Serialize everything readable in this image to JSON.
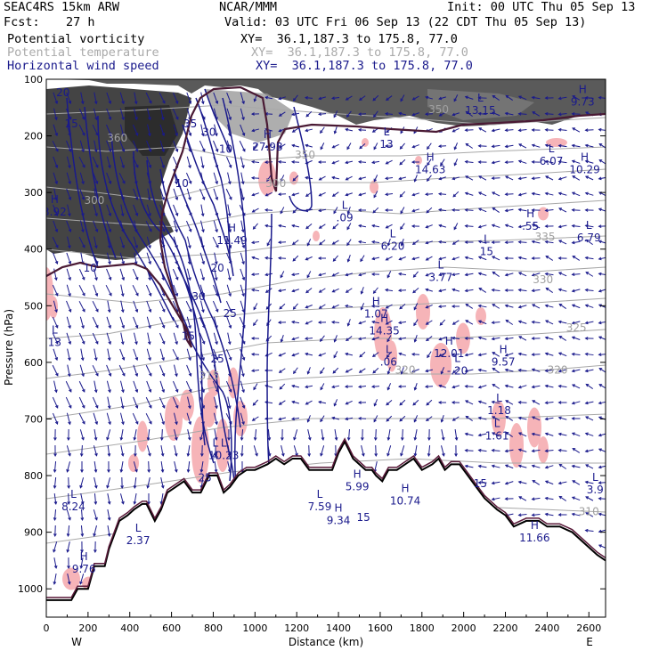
{
  "header": {
    "model": "SEAC4RS 15km ARW",
    "org": "NCAR/MMM",
    "init": "Init: 00 UTC Thu 05 Sep 13",
    "fcst_label": "Fcst:",
    "fcst_value": "27 h",
    "valid": "Valid: 03 UTC Fri 06 Sep 13 (22 CDT Thu 05 Sep 13)"
  },
  "fields": [
    {
      "name": "Potential vorticity",
      "xy": "XY=  36.1,187.3 to 175.8, 77.0",
      "color": "#000000"
    },
    {
      "name": "Potential temperature",
      "xy": "XY=  36.1,187.3 to 175.8, 77.0",
      "color": "#aaaaaa"
    },
    {
      "name": "Horizontal wind speed",
      "xy": "XY=  36.1,187.3 to 175.8, 77.0",
      "color": "#1a1a8c"
    }
  ],
  "chart_data": {
    "type": "cross-section",
    "xlabel": "Distance (km)",
    "ylabel": "Pressure (hPa)",
    "xlim": [
      0,
      2680
    ],
    "ylim": [
      1050,
      100
    ],
    "x_ticks": [
      "0",
      "200",
      "400",
      "600",
      "800",
      "1000",
      "1200",
      "1400",
      "1600",
      "1800",
      "2000",
      "2200",
      "2400",
      "2600"
    ],
    "y_ticks": [
      "100",
      "200",
      "300",
      "400",
      "500",
      "600",
      "700",
      "800",
      "900",
      "1000"
    ],
    "x_ends": {
      "left": "W",
      "right": "E"
    },
    "terrain": [
      [
        0,
        1020
      ],
      [
        120,
        1020
      ],
      [
        150,
        1000
      ],
      [
        200,
        1000
      ],
      [
        230,
        960
      ],
      [
        280,
        960
      ],
      [
        300,
        930
      ],
      [
        350,
        880
      ],
      [
        390,
        870
      ],
      [
        420,
        860
      ],
      [
        460,
        850
      ],
      [
        480,
        850
      ],
      [
        520,
        880
      ],
      [
        550,
        860
      ],
      [
        580,
        830
      ],
      [
        620,
        820
      ],
      [
        660,
        810
      ],
      [
        700,
        830
      ],
      [
        740,
        830
      ],
      [
        780,
        800
      ],
      [
        820,
        800
      ],
      [
        850,
        830
      ],
      [
        880,
        820
      ],
      [
        920,
        800
      ],
      [
        960,
        790
      ],
      [
        1000,
        790
      ],
      [
        1060,
        780
      ],
      [
        1100,
        770
      ],
      [
        1140,
        780
      ],
      [
        1180,
        770
      ],
      [
        1220,
        770
      ],
      [
        1260,
        790
      ],
      [
        1300,
        790
      ],
      [
        1330,
        790
      ],
      [
        1370,
        790
      ],
      [
        1400,
        760
      ],
      [
        1430,
        740
      ],
      [
        1470,
        770
      ],
      [
        1500,
        780
      ],
      [
        1530,
        790
      ],
      [
        1560,
        790
      ],
      [
        1580,
        800
      ],
      [
        1610,
        810
      ],
      [
        1640,
        790
      ],
      [
        1680,
        790
      ],
      [
        1720,
        780
      ],
      [
        1760,
        770
      ],
      [
        1800,
        790
      ],
      [
        1850,
        780
      ],
      [
        1880,
        770
      ],
      [
        1910,
        790
      ],
      [
        1940,
        780
      ],
      [
        1980,
        780
      ],
      [
        2020,
        800
      ],
      [
        2060,
        820
      ],
      [
        2100,
        840
      ],
      [
        2160,
        860
      ],
      [
        2200,
        870
      ],
      [
        2240,
        890
      ],
      [
        2300,
        880
      ],
      [
        2360,
        880
      ],
      [
        2400,
        890
      ],
      [
        2460,
        890
      ],
      [
        2520,
        900
      ],
      [
        2580,
        920
      ],
      [
        2640,
        940
      ],
      [
        2680,
        950
      ]
    ],
    "series": [
      {
        "name": "Potential vorticity",
        "color": "#000000"
      },
      {
        "name": "Potential temperature",
        "color": "#aaaaaa"
      },
      {
        "name": "Horizontal wind speed",
        "color": "#1a1a8c"
      }
    ],
    "theta_labels": [
      {
        "text": "360",
        "x": 340,
        "p": 210
      },
      {
        "text": "350",
        "x": 1880,
        "p": 160
      },
      {
        "text": "335",
        "x": 2390,
        "p": 385
      },
      {
        "text": "330",
        "x": 2380,
        "p": 460
      },
      {
        "text": "325",
        "x": 2540,
        "p": 545
      },
      {
        "text": "320",
        "x": 1720,
        "p": 620
      },
      {
        "text": "320",
        "x": 2450,
        "p": 620
      },
      {
        "text": "315",
        "x": 780,
        "p": 630
      },
      {
        "text": "310",
        "x": 2600,
        "p": 870
      },
      {
        "text": "300",
        "x": 230,
        "p": 320
      },
      {
        "text": "300",
        "x": 1100,
        "p": 290
      },
      {
        "text": "350",
        "x": 1240,
        "p": 240
      }
    ],
    "wind_labels": [
      {
        "text": "20",
        "x": 80,
        "p": 130
      },
      {
        "text": "15",
        "x": 120,
        "p": 185
      },
      {
        "text": "35",
        "x": 690,
        "p": 185
      },
      {
        "text": "30",
        "x": 780,
        "p": 200
      },
      {
        "text": "10",
        "x": 650,
        "p": 290
      },
      {
        "text": "10",
        "x": 210,
        "p": 440
      },
      {
        "text": "20",
        "x": 820,
        "p": 440
      },
      {
        "text": "30",
        "x": 730,
        "p": 490
      },
      {
        "text": "25",
        "x": 880,
        "p": 520
      },
      {
        "text": "25",
        "x": 820,
        "p": 600
      },
      {
        "text": "15",
        "x": 680,
        "p": 560
      },
      {
        "text": "10",
        "x": 860,
        "p": 230
      },
      {
        "text": "15",
        "x": 2080,
        "p": 820
      },
      {
        "text": "15",
        "x": 1520,
        "p": 880
      },
      {
        "text": "25",
        "x": 760,
        "p": 810
      }
    ],
    "extrema": [
      {
        "kind": "H",
        "value": "9.73",
        "x": 2570,
        "p": 135
      },
      {
        "kind": "L",
        "value": "13.15",
        "x": 2080,
        "p": 150
      },
      {
        "kind": "L",
        "value": "13",
        "x": 1630,
        "p": 210
      },
      {
        "kind": "H",
        "value": "27.98",
        "x": 1060,
        "p": 215
      },
      {
        "kind": "H",
        "value": "14.63",
        "x": 1840,
        "p": 255
      },
      {
        "kind": "L",
        "value": "6.07",
        "x": 2420,
        "p": 240
      },
      {
        "kind": "H",
        "value": "10.29",
        "x": 2580,
        "p": 255
      },
      {
        "kind": "L",
        "value": ".09",
        "x": 1430,
        "p": 340
      },
      {
        "kind": "H",
        "value": ".55",
        "x": 2320,
        "p": 355
      },
      {
        "kind": "L",
        "value": "6.79",
        "x": 2600,
        "p": 375
      },
      {
        "kind": "L",
        "value": "6.20",
        "x": 1660,
        "p": 390
      },
      {
        "kind": "L",
        "value": "15",
        "x": 2110,
        "p": 400
      },
      {
        "kind": "H",
        "value": "11.49",
        "x": 890,
        "p": 380
      },
      {
        "kind": "L",
        "value": "3.77",
        "x": 1890,
        "p": 445
      },
      {
        "kind": "H",
        "value": "1.07",
        "x": 1580,
        "p": 510
      },
      {
        "kind": "H",
        "value": "14.35",
        "x": 1620,
        "p": 540
      },
      {
        "kind": "H",
        "value": "12.01",
        "x": 1930,
        "p": 580
      },
      {
        "kind": "L",
        "value": ".06",
        "x": 1640,
        "p": 595
      },
      {
        "kind": "L",
        "value": "-.20",
        "x": 1970,
        "p": 610
      },
      {
        "kind": "H",
        "value": "9.57",
        "x": 2190,
        "p": 595
      },
      {
        "kind": "L",
        "value": "1.18",
        "x": 2170,
        "p": 680
      },
      {
        "kind": "L",
        "value": "1.61",
        "x": 2160,
        "p": 725
      },
      {
        "kind": "L",
        "value": "10.23",
        "x": 850,
        "p": 760
      },
      {
        "kind": "L",
        "value": "4",
        "x": 810,
        "p": 760
      },
      {
        "kind": "H",
        "value": "5.99",
        "x": 1490,
        "p": 815
      },
      {
        "kind": "H",
        "value": "10.74",
        "x": 1720,
        "p": 840
      },
      {
        "kind": "L",
        "value": "8.24",
        "x": 130,
        "p": 850
      },
      {
        "kind": "L",
        "value": "7.59",
        "x": 1310,
        "p": 850
      },
      {
        "kind": "H",
        "value": "9.34",
        "x": 1400,
        "p": 875
      },
      {
        "kind": "L",
        "value": "3.9",
        "x": 2630,
        "p": 820
      },
      {
        "kind": "H",
        "value": "11.66",
        "x": 2340,
        "p": 905
      },
      {
        "kind": "H",
        "value": "9.76",
        "x": 180,
        "p": 960
      },
      {
        "kind": "L",
        "value": "2.37",
        "x": 440,
        "p": 910
      },
      {
        "kind": "L",
        "value": "13",
        "x": 40,
        "p": 560
      },
      {
        "kind": "H",
        "value": "3.92",
        "x": 40,
        "p": 330
      }
    ],
    "stats": {
      "pv_shading_max_x": 1000,
      "tropopause_p_west": 480,
      "tropopause_p_east": 200
    }
  }
}
